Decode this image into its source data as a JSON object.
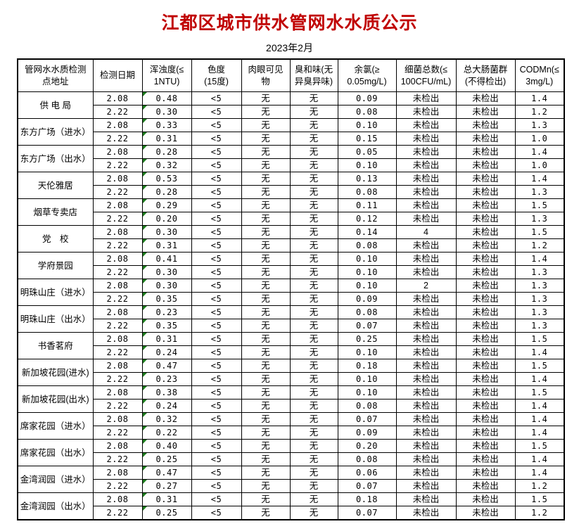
{
  "page": {
    "title": "江都区城市供水管网水水质公示",
    "subtitle": "2023年2月",
    "title_color": "#c00000"
  },
  "table": {
    "marker_color": "#1e7d1e",
    "headers": [
      "管网水水质检测\n点地址",
      "检测日期",
      "浑浊度(≤\n1NTU)",
      "色度\n(15度)",
      "肉眼可见\n物",
      "臭和味(无\n异臭异味)",
      "余氯(≥\n0.05mg/L)",
      "细菌总数(≤\n100CFU/mL)",
      "总大肠菌群\n(不得检出)",
      "CODMn(≤\n3mg/L)"
    ],
    "groups": [
      {
        "location": "供 电 局",
        "rows": [
          [
            "2.08",
            "0.48",
            "<5",
            "无",
            "无",
            "0.09",
            "未检出",
            "未检出",
            "1.4"
          ],
          [
            "2.22",
            "0.30",
            "<5",
            "无",
            "无",
            "0.08",
            "未检出",
            "未检出",
            "1.2"
          ]
        ]
      },
      {
        "location": "东方广场（进水）",
        "rows": [
          [
            "2.08",
            "0.33",
            "<5",
            "无",
            "无",
            "0.10",
            "未检出",
            "未检出",
            "1.3"
          ],
          [
            "2.22",
            "0.31",
            "<5",
            "无",
            "无",
            "0.15",
            "未检出",
            "未检出",
            "1.0"
          ]
        ]
      },
      {
        "location": "东方广场（出水）",
        "rows": [
          [
            "2.08",
            "0.28",
            "<5",
            "无",
            "无",
            "0.05",
            "未检出",
            "未检出",
            "1.4"
          ],
          [
            "2.22",
            "0.32",
            "<5",
            "无",
            "无",
            "0.10",
            "未检出",
            "未检出",
            "1.0"
          ]
        ]
      },
      {
        "location": "天伦雅居",
        "rows": [
          [
            "2.08",
            "0.53",
            "<5",
            "无",
            "无",
            "0.13",
            "未检出",
            "未检出",
            "1.4"
          ],
          [
            "2.22",
            "0.28",
            "<5",
            "无",
            "无",
            "0.08",
            "未检出",
            "未检出",
            "1.3"
          ]
        ]
      },
      {
        "location": "烟草专卖店",
        "rows": [
          [
            "2.08",
            "0.29",
            "<5",
            "无",
            "无",
            "0.11",
            "未检出",
            "未检出",
            "1.5"
          ],
          [
            "2.22",
            "0.20",
            "<5",
            "无",
            "无",
            "0.12",
            "未检出",
            "未检出",
            "1.3"
          ]
        ]
      },
      {
        "location": "党　校",
        "rows": [
          [
            "2.08",
            "0.30",
            "<5",
            "无",
            "无",
            "0.14",
            "4",
            "未检出",
            "1.5"
          ],
          [
            "2.22",
            "0.31",
            "<5",
            "无",
            "无",
            "0.08",
            "未检出",
            "未检出",
            "1.2"
          ]
        ]
      },
      {
        "location": "学府景园",
        "rows": [
          [
            "2.08",
            "0.41",
            "<5",
            "无",
            "无",
            "0.10",
            "未检出",
            "未检出",
            "1.4"
          ],
          [
            "2.22",
            "0.30",
            "<5",
            "无",
            "无",
            "0.10",
            "未检出",
            "未检出",
            "1.3"
          ]
        ]
      },
      {
        "location": "明珠山庄（进水）",
        "rows": [
          [
            "2.08",
            "0.30",
            "<5",
            "无",
            "无",
            "0.10",
            "2",
            "未检出",
            "1.3"
          ],
          [
            "2.22",
            "0.35",
            "<5",
            "无",
            "无",
            "0.09",
            "未检出",
            "未检出",
            "1.3"
          ]
        ]
      },
      {
        "location": "明珠山庄（出水）",
        "rows": [
          [
            "2.08",
            "0.23",
            "<5",
            "无",
            "无",
            "0.08",
            "未检出",
            "未检出",
            "1.3"
          ],
          [
            "2.22",
            "0.35",
            "<5",
            "无",
            "无",
            "0.07",
            "未检出",
            "未检出",
            "1.3"
          ]
        ]
      },
      {
        "location": "书香茗府",
        "rows": [
          [
            "2.08",
            "0.31",
            "<5",
            "无",
            "无",
            "0.25",
            "未检出",
            "未检出",
            "1.5"
          ],
          [
            "2.22",
            "0.24",
            "<5",
            "无",
            "无",
            "0.10",
            "未检出",
            "未检出",
            "1.4"
          ]
        ]
      },
      {
        "location": "新加坡花园(进水)",
        "rows": [
          [
            "2.08",
            "0.47",
            "<5",
            "无",
            "无",
            "0.18",
            "未检出",
            "未检出",
            "1.5"
          ],
          [
            "2.22",
            "0.23",
            "<5",
            "无",
            "无",
            "0.10",
            "未检出",
            "未检出",
            "1.4"
          ]
        ]
      },
      {
        "location": "新加坡花园(出水)",
        "rows": [
          [
            "2.08",
            "0.38",
            "<5",
            "无",
            "无",
            "0.10",
            "未检出",
            "未检出",
            "1.5"
          ],
          [
            "2.22",
            "0.24",
            "<5",
            "无",
            "无",
            "0.08",
            "未检出",
            "未检出",
            "1.4"
          ]
        ]
      },
      {
        "location": "席家花园（进水）",
        "rows": [
          [
            "2.08",
            "0.32",
            "<5",
            "无",
            "无",
            "0.07",
            "未检出",
            "未检出",
            "1.4"
          ],
          [
            "2.22",
            "0.22",
            "<5",
            "无",
            "无",
            "0.09",
            "未检出",
            "未检出",
            "1.4"
          ]
        ]
      },
      {
        "location": "席家花园（出水）",
        "rows": [
          [
            "2.08",
            "0.40",
            "<5",
            "无",
            "无",
            "0.20",
            "未检出",
            "未检出",
            "1.5"
          ],
          [
            "2.22",
            "0.25",
            "<5",
            "无",
            "无",
            "0.08",
            "未检出",
            "未检出",
            "1.4"
          ]
        ]
      },
      {
        "location": "金湾润园（进水）",
        "rows": [
          [
            "2.08",
            "0.47",
            "<5",
            "无",
            "无",
            "0.06",
            "未检出",
            "未检出",
            "1.4"
          ],
          [
            "2.22",
            "0.27",
            "<5",
            "无",
            "无",
            "0.07",
            "未检出",
            "未检出",
            "1.2"
          ]
        ]
      },
      {
        "location": "金湾润园（出水）",
        "rows": [
          [
            "2.08",
            "0.31",
            "<5",
            "无",
            "无",
            "0.18",
            "未检出",
            "未检出",
            "1.5"
          ],
          [
            "2.22",
            "0.25",
            "<5",
            "无",
            "无",
            "0.07",
            "未检出",
            "未检出",
            "1.2"
          ]
        ]
      }
    ]
  }
}
